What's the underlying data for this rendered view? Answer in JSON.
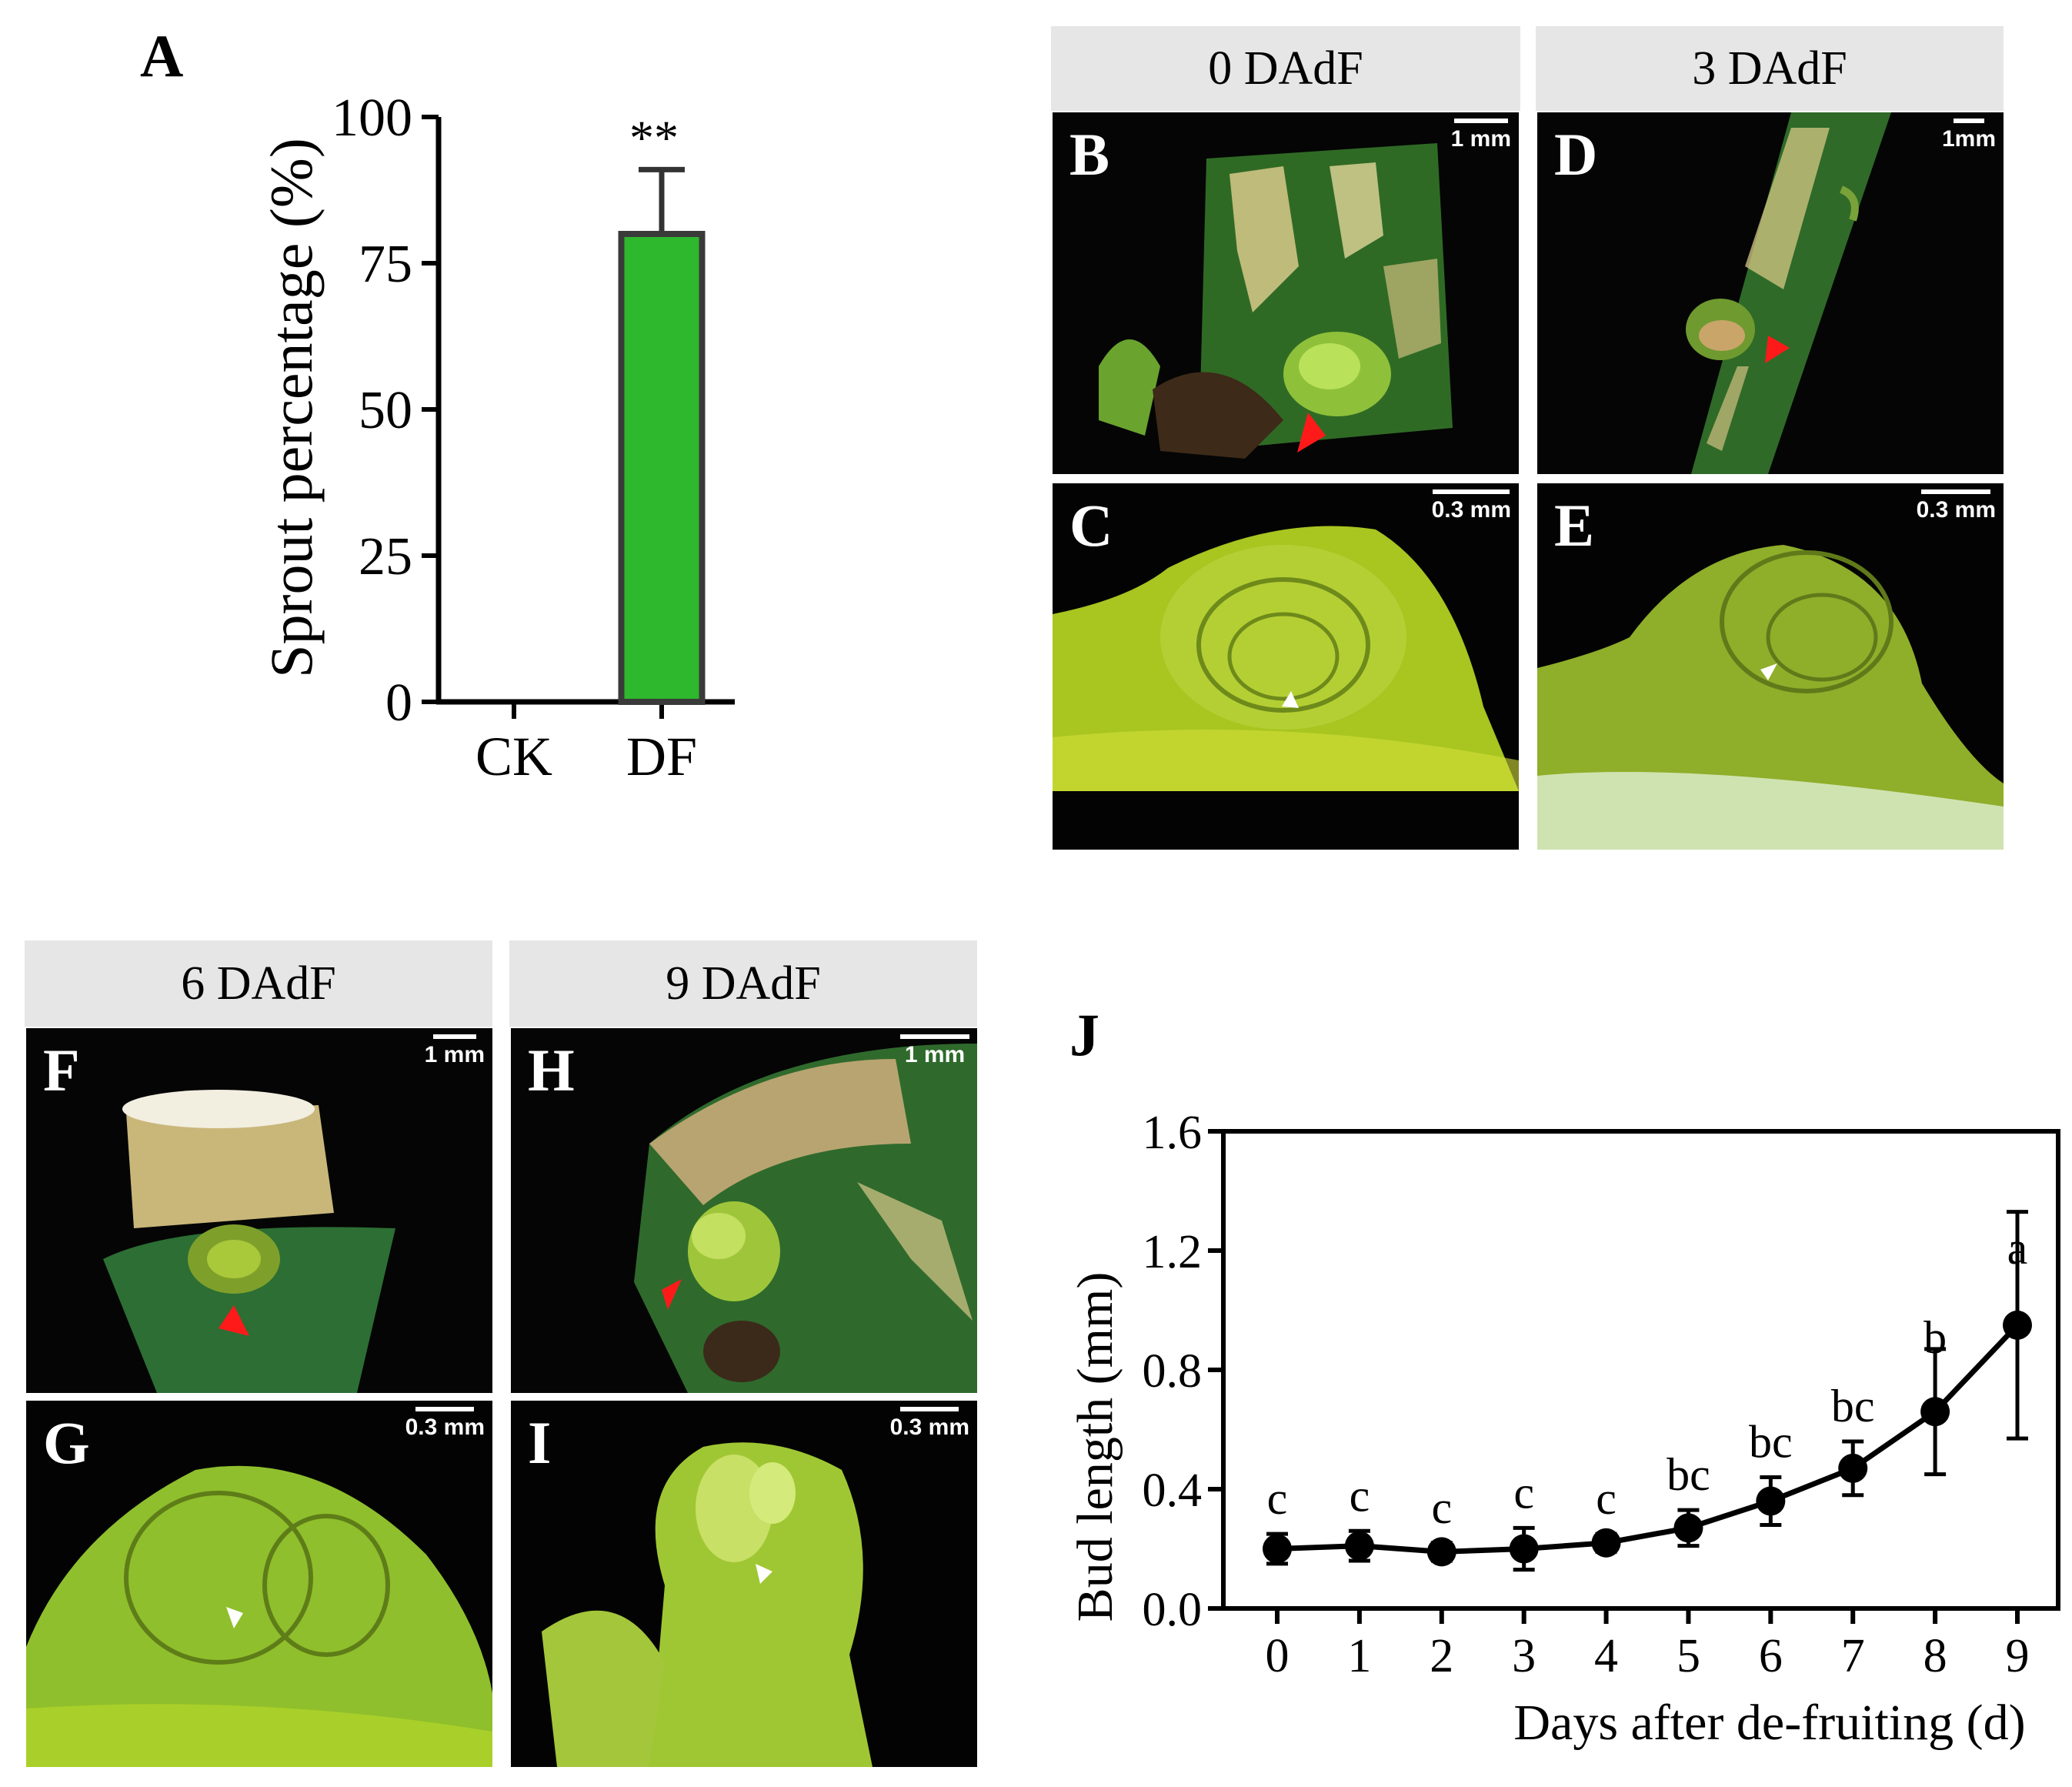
{
  "panel_a": {
    "letter": "A",
    "chart_data": {
      "type": "bar",
      "categories": [
        "CK",
        "DF"
      ],
      "values": [
        0,
        80
      ],
      "errors": [
        0,
        11
      ],
      "ylim": [
        0,
        100
      ],
      "yticks": [
        "0",
        "25",
        "50",
        "75",
        "100"
      ],
      "ylabel": "Sprout percentage (%)",
      "significance": "**",
      "bar_color": "#2db82d"
    }
  },
  "groups": [
    {
      "header": "0 DAdF",
      "top": {
        "letter": "B",
        "scale": "1 mm"
      },
      "bottom": {
        "letter": "C",
        "scale": "0.3 mm"
      }
    },
    {
      "header": "3 DAdF",
      "top": {
        "letter": "D",
        "scale": "1mm"
      },
      "bottom": {
        "letter": "E",
        "scale": "0.3 mm"
      }
    },
    {
      "header": "6 DAdF",
      "top": {
        "letter": "F",
        "scale": "1 mm"
      },
      "bottom": {
        "letter": "G",
        "scale": "0.3 mm"
      }
    },
    {
      "header": "9 DAdF",
      "top": {
        "letter": "H",
        "scale": "1 mm"
      },
      "bottom": {
        "letter": "I",
        "scale": "0.3 mm"
      }
    }
  ],
  "panel_j": {
    "letter": "J",
    "chart_data": {
      "type": "line",
      "x": [
        0,
        1,
        2,
        3,
        4,
        5,
        6,
        7,
        8,
        9
      ],
      "y": [
        0.2,
        0.21,
        0.19,
        0.2,
        0.22,
        0.27,
        0.36,
        0.47,
        0.66,
        0.95
      ],
      "err": [
        0.05,
        0.05,
        0.03,
        0.07,
        0.03,
        0.06,
        0.08,
        0.09,
        0.21,
        0.38
      ],
      "letters": [
        "c",
        "c",
        "c",
        "c",
        "c",
        "bc",
        "bc",
        "bc",
        "b",
        "a"
      ],
      "xlim": [
        0,
        9
      ],
      "ylim": [
        0,
        1.6
      ],
      "yticks": [
        "0.0",
        "0.4",
        "0.8",
        "1.2",
        "1.6"
      ],
      "xticks": [
        "0",
        "1",
        "2",
        "3",
        "4",
        "5",
        "6",
        "7",
        "8",
        "9"
      ],
      "xlabel": "Days after de-fruiting (d)",
      "ylabel": "Bud length (mm)"
    }
  }
}
